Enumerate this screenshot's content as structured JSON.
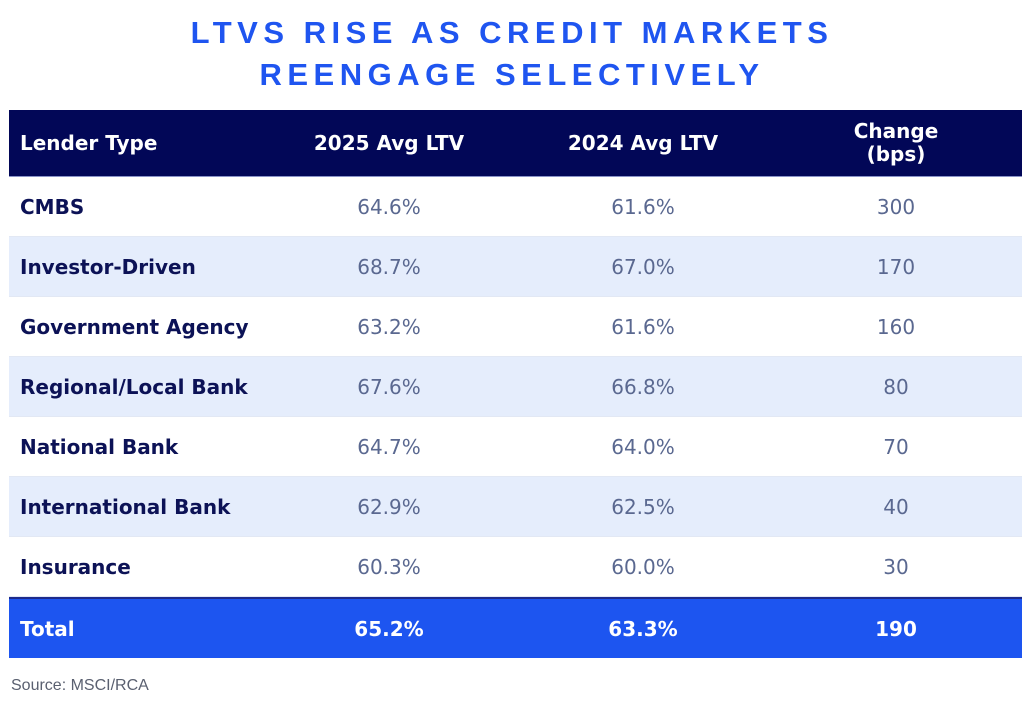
{
  "title": {
    "line1": "LTVS RISE AS CREDIT MARKETS",
    "line2": "REENGAGE SELECTIVELY"
  },
  "table": {
    "headers": [
      "Lender Type",
      "2025 Avg LTV",
      "2024 Avg LTV",
      "Change\n(bps)"
    ],
    "header_change_line1": "Change",
    "header_change_line2": "(bps)",
    "rows": [
      {
        "lender": "CMBS",
        "ltv2025": "64.6%",
        "ltv2024": "61.6%",
        "change": "300"
      },
      {
        "lender": "Investor-Driven",
        "ltv2025": "68.7%",
        "ltv2024": "67.0%",
        "change": "170"
      },
      {
        "lender": "Government Agency",
        "ltv2025": "63.2%",
        "ltv2024": "61.6%",
        "change": "160"
      },
      {
        "lender": "Regional/Local Bank",
        "ltv2025": "67.6%",
        "ltv2024": "66.8%",
        "change": "80"
      },
      {
        "lender": "National Bank",
        "ltv2025": "64.7%",
        "ltv2024": "64.0%",
        "change": "70"
      },
      {
        "lender": "International Bank",
        "ltv2025": "62.9%",
        "ltv2024": "62.5%",
        "change": "40"
      },
      {
        "lender": "Insurance",
        "ltv2025": "60.3%",
        "ltv2024": "60.0%",
        "change": "30"
      }
    ],
    "total": {
      "lender": "Total",
      "ltv2025": "65.2%",
      "ltv2024": "63.3%",
      "change": "190"
    }
  },
  "source": "Source: MSCI/RCA",
  "colors": {
    "title": "#1f55f0",
    "header_bg": "#020757",
    "alt_row_bg": "#e5edfc",
    "total_bg": "#1d55f0",
    "label_text": "#0c1256",
    "value_text": "#5a6890"
  },
  "chart_data": {
    "type": "table",
    "title": "LTVs Rise as Credit Markets Reengage Selectively",
    "columns": [
      "Lender Type",
      "2025 Avg LTV",
      "2024 Avg LTV",
      "Change (bps)"
    ],
    "rows": [
      [
        "CMBS",
        64.6,
        61.6,
        300
      ],
      [
        "Investor-Driven",
        68.7,
        67.0,
        170
      ],
      [
        "Government Agency",
        63.2,
        61.6,
        160
      ],
      [
        "Regional/Local Bank",
        67.6,
        66.8,
        80
      ],
      [
        "National Bank",
        64.7,
        64.0,
        70
      ],
      [
        "International Bank",
        62.9,
        62.5,
        40
      ],
      [
        "Insurance",
        60.3,
        60.0,
        30
      ],
      [
        "Total",
        65.2,
        63.3,
        190
      ]
    ],
    "units": {
      "2025 Avg LTV": "%",
      "2024 Avg LTV": "%",
      "Change (bps)": "bps"
    },
    "source": "MSCI/RCA"
  }
}
